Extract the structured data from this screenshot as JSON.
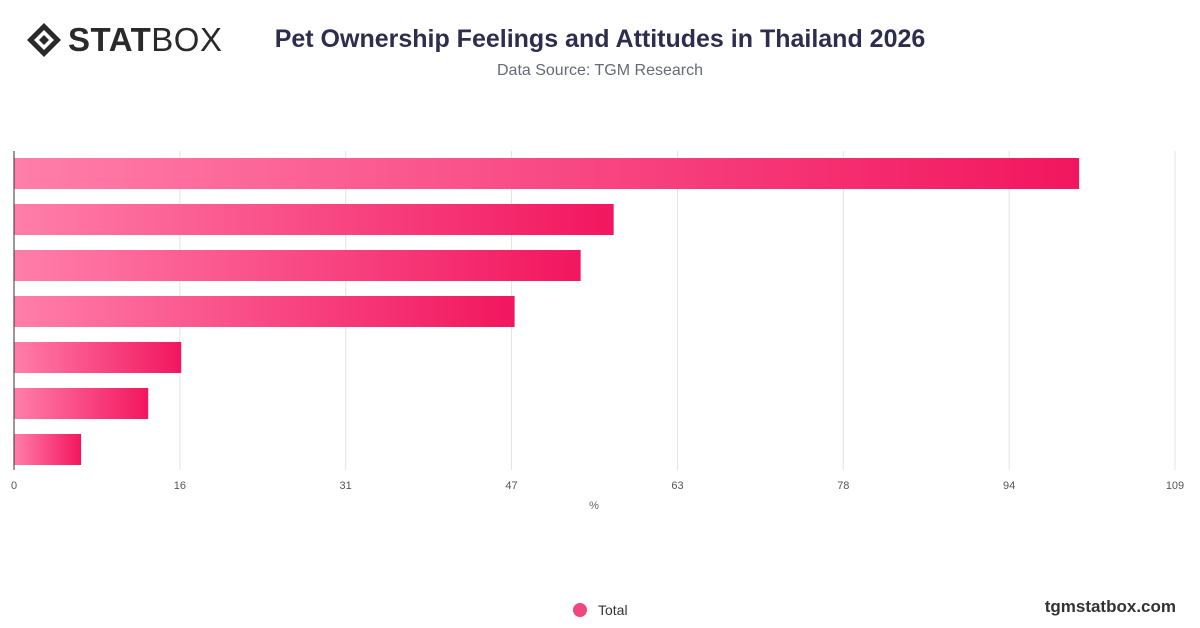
{
  "header": {
    "logo_bold": "STAT",
    "logo_light": "BOX",
    "title": "Pet Ownership Feelings and Attitudes in Thailand 2026",
    "subtitle": "Data Source: TGM Research"
  },
  "chart_data": {
    "type": "bar",
    "orientation": "horizontal",
    "title": "Pet Ownership Feelings and Attitudes in Thailand 2026",
    "xlabel": "%",
    "xlim": [
      0,
      109
    ],
    "ticks": [
      "0",
      "16",
      "31",
      "47",
      "63",
      "78",
      "94",
      "109"
    ],
    "tick_values": [
      0,
      15.57,
      31.14,
      46.71,
      62.29,
      77.86,
      93.43,
      109
    ],
    "grid": true,
    "legend_position": "bottom",
    "series": [
      {
        "name": "Total",
        "values": [
          100,
          56.3,
          53.2,
          47,
          15.7,
          12.6,
          6.3
        ]
      }
    ],
    "colors": {
      "bar_start": "#ff7eaa",
      "bar_end": "#f2165f",
      "legend": "#f0477f"
    }
  },
  "legend": {
    "label": "Total"
  },
  "footer": {
    "site": "tgmstatbox.com"
  }
}
